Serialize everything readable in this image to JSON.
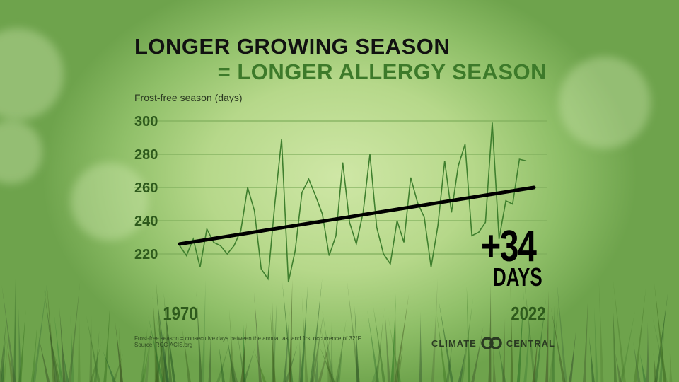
{
  "title_line1": "LONGER GROWING SEASON",
  "title_line2": "= LONGER ALLERGY SEASON",
  "annotation": {
    "value": "+34",
    "unit": "DAYS"
  },
  "footnote": [
    "Frost-free season = consecutive days between the annual last and first occurrence of 32°F",
    "Source: RCC-ACIS.org"
  ],
  "logo": {
    "left": "CLIMATE",
    "right": "CENTRAL"
  },
  "colors": {
    "series": "#3f7f2e",
    "trend": "#000000",
    "title_accent": "#3d7a2a",
    "tick": "#2e5a1c"
  },
  "chart_data": {
    "type": "line",
    "title": "LONGER GROWING SEASON = LONGER ALLERGY SEASON",
    "ylabel": "Frost-free season (days)",
    "xlabel": "",
    "ylim": [
      200,
      300
    ],
    "yticks": [
      300,
      280,
      260,
      240,
      220
    ],
    "xtick_labels": [
      "1970",
      "2022"
    ],
    "grid": true,
    "x_start": 1970,
    "values": [
      225,
      219,
      229,
      212,
      235,
      227,
      225,
      220,
      225,
      234,
      260,
      246,
      211,
      205,
      250,
      289,
      203,
      222,
      257,
      265,
      255,
      244,
      219,
      231,
      275,
      239,
      226,
      245,
      280,
      236,
      220,
      214,
      240,
      227,
      266,
      251,
      242,
      212,
      237,
      276,
      245,
      273,
      286,
      231,
      233,
      239,
      299,
      229,
      252,
      250,
      277,
      276
    ],
    "trend": {
      "start": 226,
      "end": 260,
      "change": "+34 days"
    }
  }
}
